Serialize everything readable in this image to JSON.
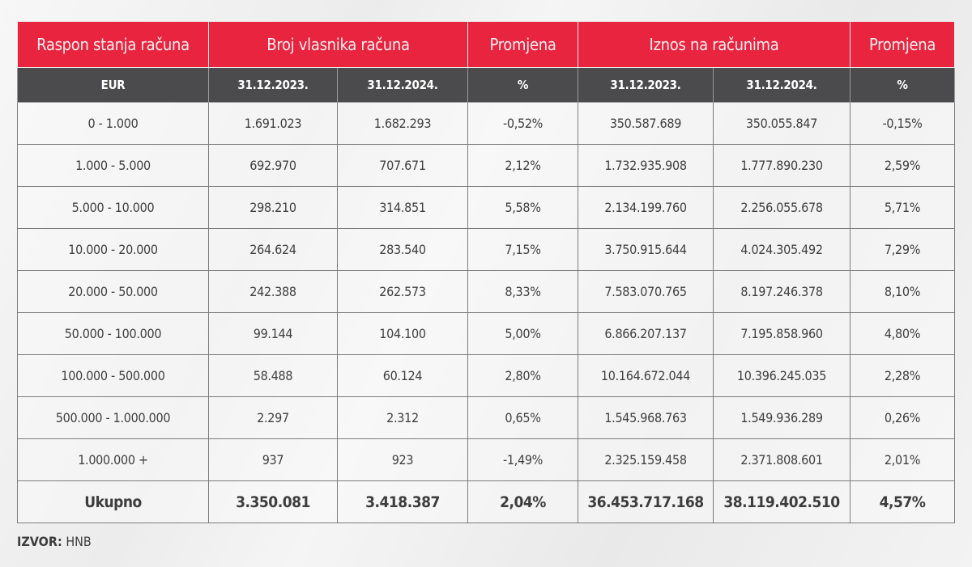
{
  "header": {
    "group_labels": [
      "Raspon stanja računa",
      "Broj vlasnika računa",
      "Promjena",
      "Iznos na računima",
      "Promjena"
    ],
    "sub_labels": [
      "EUR",
      "31.12.2023.",
      "31.12.2024.",
      "%",
      "31.12.2023.",
      "31.12.2024.",
      "%"
    ]
  },
  "rows": [
    {
      "range": "0 - 1.000",
      "owners_2023": "1.691.023",
      "owners_2024": "1.682.293",
      "owners_change": "-0,52%",
      "amount_2023": "350.587.689",
      "amount_2024": "350.055.847",
      "amount_change": "-0,15%"
    },
    {
      "range": "1.000 - 5.000",
      "owners_2023": "692.970",
      "owners_2024": "707.671",
      "owners_change": "2,12%",
      "amount_2023": "1.732.935.908",
      "amount_2024": "1.777.890.230",
      "amount_change": "2,59%"
    },
    {
      "range": "5.000 - 10.000",
      "owners_2023": "298.210",
      "owners_2024": "314.851",
      "owners_change": "5,58%",
      "amount_2023": "2.134.199.760",
      "amount_2024": "2.256.055.678",
      "amount_change": "5,71%"
    },
    {
      "range": "10.000 - 20.000",
      "owners_2023": "264.624",
      "owners_2024": "283.540",
      "owners_change": "7,15%",
      "amount_2023": "3.750.915.644",
      "amount_2024": "4.024.305.492",
      "amount_change": "7,29%"
    },
    {
      "range": "20.000 - 50.000",
      "owners_2023": "242.388",
      "owners_2024": "262.573",
      "owners_change": "8,33%",
      "amount_2023": "7.583.070.765",
      "amount_2024": "8.197.246.378",
      "amount_change": "8,10%"
    },
    {
      "range": "50.000 - 100.000",
      "owners_2023": "99.144",
      "owners_2024": "104.100",
      "owners_change": "5,00%",
      "amount_2023": "6.866.207.137",
      "amount_2024": "7.195.858.960",
      "amount_change": "4,80%"
    },
    {
      "range": "100.000 - 500.000",
      "owners_2023": "58.488",
      "owners_2024": "60.124",
      "owners_change": "2,80%",
      "amount_2023": "10.164.672.044",
      "amount_2024": "10.396.245.035",
      "amount_change": "2,28%"
    },
    {
      "range": "500.000 - 1.000.000",
      "owners_2023": "2.297",
      "owners_2024": "2.312",
      "owners_change": "0,65%",
      "amount_2023": "1.545.968.763",
      "amount_2024": "1.549.936.289",
      "amount_change": "0,26%"
    },
    {
      "range": "1.000.000 +",
      "owners_2023": "937",
      "owners_2024": "923",
      "owners_change": "-1,49%",
      "amount_2023": "2.325.159.458",
      "amount_2024": "2.371.808.601",
      "amount_change": "2,01%"
    }
  ],
  "total": {
    "range": "Ukupno",
    "owners_2023": "3.350.081",
    "owners_2024": "3.418.387",
    "owners_change": "2,04%",
    "amount_2023": "36.453.717.168",
    "amount_2024": "38.119.402.510",
    "amount_change": "4,57%"
  },
  "source": {
    "label": "IZVOR:",
    "value": "HNB"
  },
  "colors": {
    "header_red": "#e8243f",
    "header_dark": "#4b4b4d",
    "text": "#3f3f3f"
  }
}
